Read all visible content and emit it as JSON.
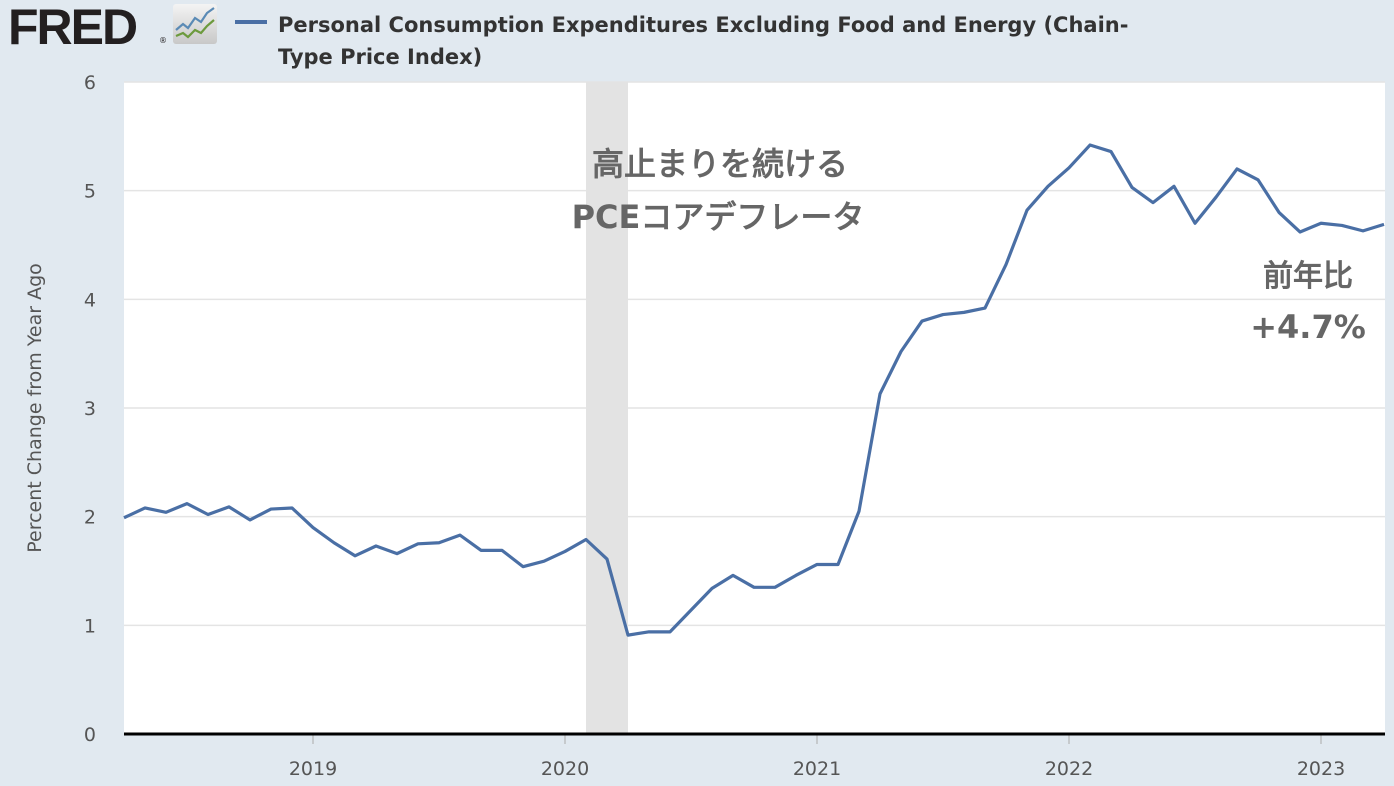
{
  "header": {
    "logo_text": "FRED",
    "logo_reg": "®",
    "series_title": "Personal Consumption Expenditures Excluding Food and Energy (Chain-Type Price Index)",
    "series_color": "#4a6fa5"
  },
  "chart_data": {
    "type": "line",
    "title": "Personal Consumption Expenditures Excluding Food and Energy (Chain-Type Price Index)",
    "ylabel": "Percent Change from Year Ago",
    "xlabel": "",
    "ylim": [
      0,
      6
    ],
    "yticks": [
      "0",
      "1",
      "2",
      "3",
      "4",
      "5",
      "6"
    ],
    "xticks": [
      "2019",
      "2020",
      "2021",
      "2022",
      "2023"
    ],
    "x_start": "2018-04",
    "frequency": "monthly",
    "grid": true,
    "recessions": [
      {
        "start": "2020-02",
        "end": "2020-04"
      }
    ],
    "annotations": {
      "main_line1": "高止まりを続ける",
      "main_line2": "PCEコアデフレータ",
      "yoy_label": "前年比",
      "yoy_value": "+4.7%"
    },
    "series": [
      {
        "name": "Personal Consumption Expenditures Excluding Food and Energy (Chain-Type Price Index)",
        "color": "#4a6fa5",
        "values": [
          1.99,
          2.08,
          2.04,
          2.12,
          2.02,
          2.09,
          1.97,
          2.07,
          2.08,
          1.9,
          1.76,
          1.64,
          1.73,
          1.66,
          1.75,
          1.76,
          1.83,
          1.69,
          1.69,
          1.54,
          1.59,
          1.68,
          1.79,
          1.61,
          0.91,
          0.94,
          0.94,
          1.14,
          1.34,
          1.46,
          1.35,
          1.35,
          1.46,
          1.56,
          1.56,
          2.05,
          3.13,
          3.52,
          3.8,
          3.86,
          3.88,
          3.92,
          4.32,
          4.82,
          5.04,
          5.21,
          5.42,
          5.36,
          5.03,
          4.89,
          5.04,
          4.7,
          4.94,
          5.2,
          5.1,
          4.8,
          4.62,
          4.7,
          4.68,
          4.63,
          4.69
        ]
      }
    ]
  }
}
